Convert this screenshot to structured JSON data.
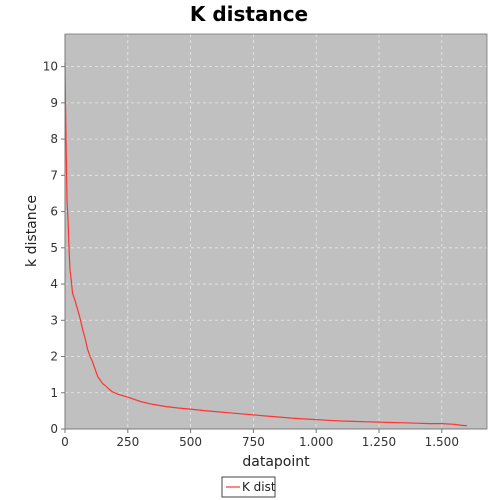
{
  "chart_data": {
    "type": "line",
    "title": "K distance",
    "xlabel": "datapoint",
    "ylabel": "k distance",
    "xlim": [
      0,
      1680
    ],
    "ylim": [
      0,
      10.9
    ],
    "grid": true,
    "legend_placement": "bottom-center",
    "colors": {
      "plot_bg": "#c0c0c0",
      "grid": "#e8e8e8",
      "series": "#ff3333"
    },
    "x_ticks": [
      {
        "value": 0,
        "label": "0"
      },
      {
        "value": 250,
        "label": "250"
      },
      {
        "value": 500,
        "label": "500"
      },
      {
        "value": 750,
        "label": "750"
      },
      {
        "value": 1000,
        "label": "1.000"
      },
      {
        "value": 1250,
        "label": "1.250"
      },
      {
        "value": 1500,
        "label": "1.500"
      }
    ],
    "y_ticks": [
      {
        "value": 0,
        "label": "0"
      },
      {
        "value": 1,
        "label": "1"
      },
      {
        "value": 2,
        "label": "2"
      },
      {
        "value": 3,
        "label": "3"
      },
      {
        "value": 4,
        "label": "4"
      },
      {
        "value": 5,
        "label": "5"
      },
      {
        "value": 6,
        "label": "6"
      },
      {
        "value": 7,
        "label": "7"
      },
      {
        "value": 8,
        "label": "8"
      },
      {
        "value": 9,
        "label": "9"
      },
      {
        "value": 10,
        "label": "10"
      }
    ],
    "series": [
      {
        "name": "K dist",
        "x": [
          0,
          2,
          5,
          8,
          12,
          16,
          20,
          25,
          30,
          40,
          50,
          60,
          70,
          80,
          90,
          100,
          110,
          120,
          130,
          140,
          150,
          160,
          175,
          190,
          210,
          230,
          250,
          275,
          300,
          350,
          400,
          450,
          500,
          550,
          600,
          650,
          700,
          750,
          800,
          850,
          900,
          950,
          1000,
          1050,
          1100,
          1150,
          1200,
          1250,
          1300,
          1350,
          1400,
          1450,
          1500,
          1550,
          1580,
          1600
        ],
        "y": [
          10.1,
          9.0,
          7.5,
          6.3,
          5.8,
          5.0,
          4.4,
          4.1,
          3.75,
          3.55,
          3.3,
          3.05,
          2.75,
          2.5,
          2.2,
          2.0,
          1.85,
          1.65,
          1.45,
          1.35,
          1.25,
          1.2,
          1.1,
          1.02,
          0.96,
          0.92,
          0.88,
          0.82,
          0.76,
          0.68,
          0.62,
          0.58,
          0.55,
          0.51,
          0.48,
          0.45,
          0.42,
          0.39,
          0.36,
          0.33,
          0.3,
          0.28,
          0.26,
          0.24,
          0.22,
          0.21,
          0.2,
          0.19,
          0.18,
          0.17,
          0.16,
          0.15,
          0.15,
          0.13,
          0.1,
          0.09
        ]
      }
    ]
  }
}
